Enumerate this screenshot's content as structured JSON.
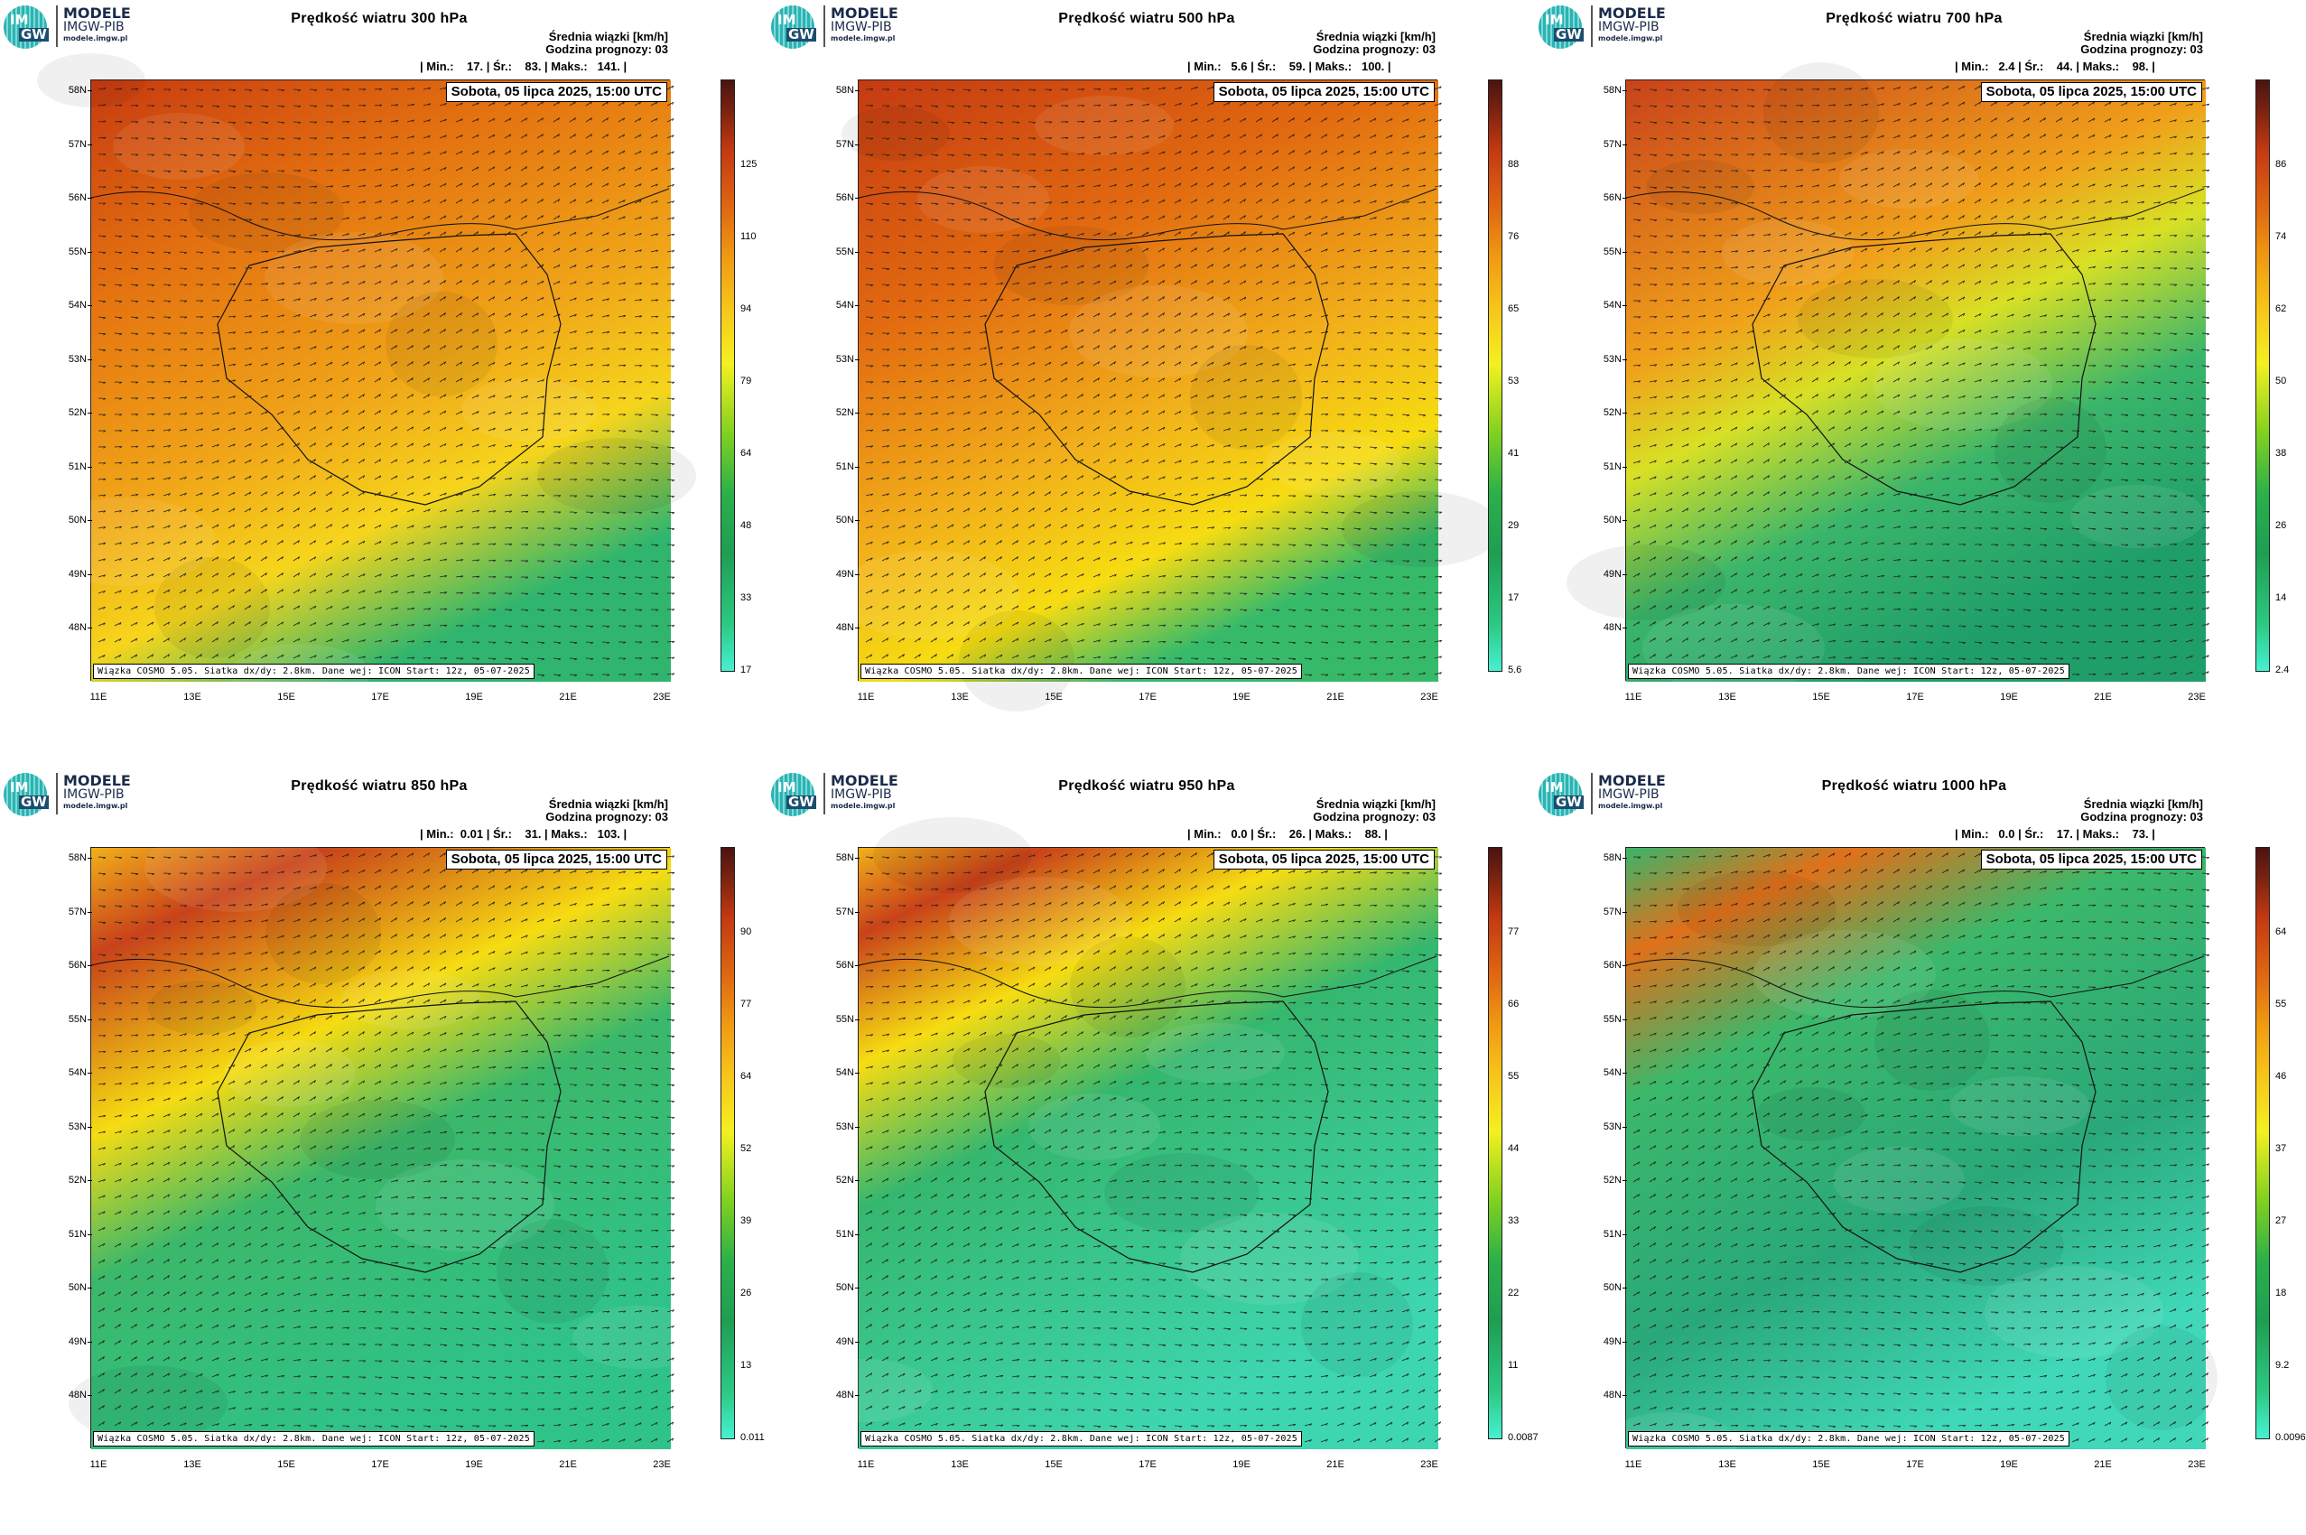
{
  "logo": {
    "line1": "MODELE",
    "line2": "IMGW-PIB",
    "line3": "modele.imgw.pl",
    "mark_top": "IM",
    "mark_bottom": "GW"
  },
  "common": {
    "info_line1": "Średnia wiązki [km/h]",
    "info_line2": "Godzina prognozy: 03",
    "date": "Sobota, 05 lipca 2025, 15:00 UTC",
    "footer": "Wiązka COSMO 5.05. Siatka dx/dy: 2.8km. Dane wej: ICON Start: 12z, 05-07-2025",
    "lat_labels": [
      "58N",
      "57N",
      "56N",
      "55N",
      "54N",
      "53N",
      "52N",
      "51N",
      "50N",
      "49N",
      "48N"
    ],
    "lon_labels": [
      "11E",
      "13E",
      "15E",
      "17E",
      "19E",
      "21E",
      "23E"
    ]
  },
  "colors": {
    "bar_bottom": "#46f0d2",
    "greens": "#1fb070",
    "yellow": "#f7dd10",
    "orange": "#ee8a12",
    "red": "#c43a12",
    "brown": "#5a1a10"
  },
  "panels": [
    {
      "title": "Prędkość wiatru 300 hPa",
      "stats": "| Min.:    17. | Śr.:    83. | Maks.:   141. |",
      "ticks": [
        "125",
        "110",
        "94",
        "79",
        "64",
        "48",
        "33",
        "17"
      ]
    },
    {
      "title": "Prędkość wiatru 500 hPa",
      "stats": "| Min.:   5.6 | Śr.:    59. | Maks.:   100. |",
      "ticks": [
        "88",
        "76",
        "65",
        "53",
        "41",
        "29",
        "17",
        "5.6"
      ]
    },
    {
      "title": "Prędkość wiatru 700 hPa",
      "stats": "| Min.:   2.4 | Śr.:    44. | Maks.:    98. |",
      "ticks": [
        "86",
        "74",
        "62",
        "50",
        "38",
        "26",
        "14",
        "2.4"
      ]
    },
    {
      "title": "Prędkość wiatru 850 hPa",
      "stats": "| Min.:  0.01 | Śr.:    31. | Maks.:   103. |",
      "ticks": [
        "90",
        "77",
        "64",
        "52",
        "39",
        "26",
        "13",
        "0.011"
      ]
    },
    {
      "title": "Prędkość wiatru 950 hPa",
      "stats": "| Min.:   0.0 | Śr.:    26. | Maks.:    88. |",
      "ticks": [
        "77",
        "66",
        "55",
        "44",
        "33",
        "22",
        "11",
        "0.0087"
      ]
    },
    {
      "title": "Prędkość wiatru 1000 hPa",
      "stats": "| Min.:   0.0 | Śr.:    17. | Maks.:    73. |",
      "ticks": [
        "64",
        "55",
        "46",
        "37",
        "27",
        "18",
        "9.2",
        "0.0096"
      ]
    }
  ]
}
